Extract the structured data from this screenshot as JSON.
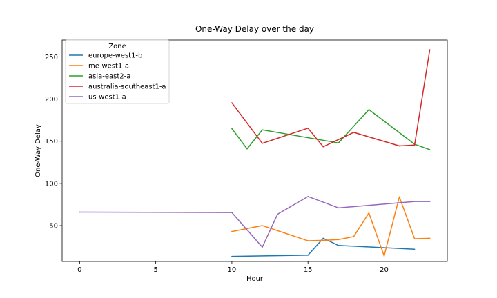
{
  "chart_data": {
    "type": "line",
    "title": "One-Way Delay over the day",
    "xlabel": "Hour",
    "ylabel": "One-Way Delay",
    "xlim": [
      -1.15,
      24.15
    ],
    "ylim": [
      7.5,
      270
    ],
    "xticks": [
      0,
      5,
      10,
      15,
      20
    ],
    "yticks": [
      50,
      100,
      150,
      200,
      250
    ],
    "grid": false,
    "legend": {
      "title": "Zone",
      "placement": "top-left"
    },
    "series": [
      {
        "name": "europe-west1-b",
        "color": "#1f77b4",
        "x": [
          10,
          15,
          16,
          17,
          22
        ],
        "y": [
          13.5,
          15,
          35,
          26.5,
          22
        ]
      },
      {
        "name": "me-west1-a",
        "color": "#ff7f0e",
        "x": [
          10,
          12,
          15,
          16,
          17,
          18,
          19,
          20,
          21,
          22,
          23
        ],
        "y": [
          43,
          50,
          32,
          32.5,
          33.5,
          37,
          65,
          14,
          84,
          34.5,
          35
        ]
      },
      {
        "name": "asia-east2-a",
        "color": "#2ca02c",
        "x": [
          10,
          11,
          12,
          17,
          19,
          22,
          23
        ],
        "y": [
          165,
          141,
          163.5,
          148,
          187.5,
          146.5,
          140
        ]
      },
      {
        "name": "australia-southeast1-a",
        "color": "#d62728",
        "x": [
          10,
          12,
          15,
          16,
          18,
          21,
          22,
          23
        ],
        "y": [
          195.5,
          147.5,
          165.5,
          143.5,
          160.5,
          144.5,
          145.5,
          258.5
        ]
      },
      {
        "name": "us-west1-a",
        "color": "#9467bd",
        "x": [
          0,
          10,
          12,
          13,
          15,
          17,
          22,
          23
        ],
        "y": [
          66,
          65.5,
          24.5,
          63.5,
          84.5,
          71,
          78.5,
          78.5
        ]
      }
    ]
  }
}
